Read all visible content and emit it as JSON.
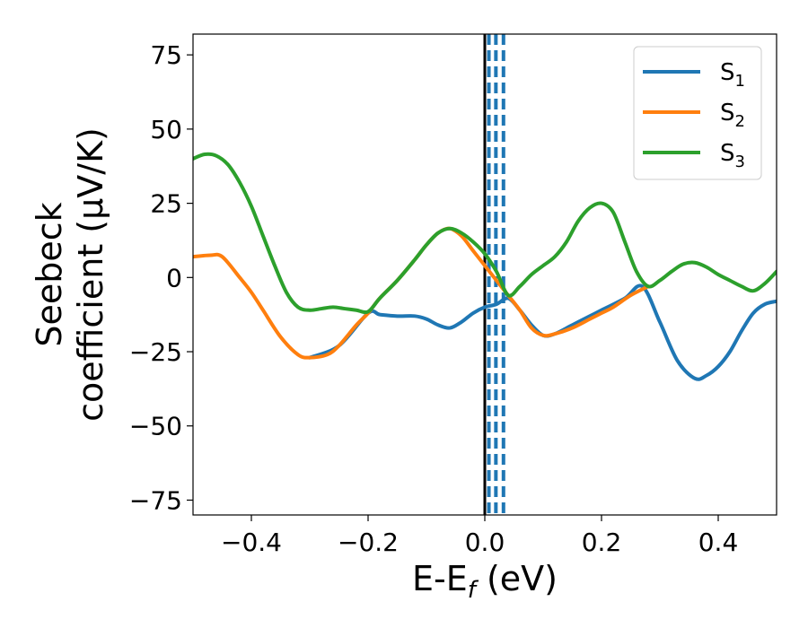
{
  "chart_data": {
    "type": "line",
    "xlabel": "E-E",
    "xlabel_sub": "f",
    "xlabel_unit": " (eV)",
    "ylabel_line1": "Seebeck",
    "ylabel_line2": "coefficient  (μV/K)",
    "xlim": [
      -0.5,
      0.5
    ],
    "ylim": [
      -80,
      82
    ],
    "xticks": [
      -0.4,
      -0.2,
      0.0,
      0.2,
      0.4
    ],
    "xtick_labels": [
      "−0.4",
      "−0.2",
      "0.0",
      "0.2",
      "0.4"
    ],
    "yticks": [
      75,
      50,
      25,
      0,
      -25,
      -50,
      -75
    ],
    "ytick_labels": [
      "75",
      "50",
      "25",
      "0",
      "−25",
      "−50",
      "−75"
    ],
    "grid": false,
    "legend_position": "top-right",
    "vertical_lines": [
      {
        "x": 0.0,
        "style": "solid",
        "color": "#000000"
      },
      {
        "x": 0.007,
        "style": "dashed",
        "color": "#1f77b4"
      },
      {
        "x": 0.019,
        "style": "dashed",
        "color": "#1f77b4"
      },
      {
        "x": 0.032,
        "style": "dashed",
        "color": "#1f77b4"
      }
    ],
    "series": [
      {
        "name": "S",
        "sub": "1",
        "color": "#1f77b4",
        "x": [
          -0.3,
          -0.25,
          -0.2,
          -0.18,
          -0.15,
          -0.12,
          -0.1,
          -0.08,
          -0.06,
          -0.04,
          -0.02,
          0.0,
          0.02,
          0.04,
          0.06,
          0.08,
          0.1,
          0.12,
          0.15,
          0.18,
          0.2,
          0.24,
          0.27,
          0.3,
          0.33,
          0.36,
          0.38,
          0.4,
          0.42,
          0.44,
          0.46,
          0.48,
          0.5
        ],
        "y": [
          -27,
          -23,
          -12,
          -12.5,
          -13,
          -13,
          -14,
          -16,
          -17,
          -15,
          -12,
          -10,
          -9,
          -7,
          -11,
          -16,
          -19.5,
          -19,
          -16,
          -13,
          -11,
          -7,
          -3,
          -15,
          -28,
          -34,
          -33,
          -30,
          -25,
          -18,
          -12,
          -9,
          -8
        ]
      },
      {
        "name": "S",
        "sub": "2",
        "color": "#ff7f0e",
        "x": [
          -0.5,
          -0.47,
          -0.45,
          -0.42,
          -0.4,
          -0.38,
          -0.35,
          -0.32,
          -0.3,
          -0.27,
          -0.25,
          -0.22,
          -0.2,
          -0.18,
          -0.15,
          -0.12,
          -0.1,
          -0.08,
          -0.06,
          -0.04,
          -0.02,
          0.0,
          0.02,
          0.04,
          0.06,
          0.08,
          0.1,
          0.12,
          0.15,
          0.18,
          0.2,
          0.22,
          0.25,
          0.28
        ],
        "y": [
          7,
          7.5,
          7,
          0,
          -5,
          -11,
          -20,
          -26,
          -27,
          -26,
          -23,
          -16,
          -12,
          -7,
          -1,
          6,
          11,
          15,
          16.5,
          14,
          9,
          4,
          -1,
          -6,
          -11,
          -17,
          -19.5,
          -19,
          -17,
          -14,
          -12,
          -10,
          -6,
          -3
        ]
      },
      {
        "name": "S",
        "sub": "3",
        "color": "#2ca02c",
        "x": [
          -0.5,
          -0.48,
          -0.46,
          -0.44,
          -0.42,
          -0.4,
          -0.38,
          -0.36,
          -0.34,
          -0.32,
          -0.3,
          -0.28,
          -0.26,
          -0.24,
          -0.22,
          -0.2,
          -0.18,
          -0.15,
          -0.12,
          -0.1,
          -0.08,
          -0.06,
          -0.04,
          -0.02,
          0.0,
          0.02,
          0.04,
          0.06,
          0.08,
          0.1,
          0.12,
          0.14,
          0.16,
          0.18,
          0.2,
          0.22,
          0.24,
          0.26,
          0.28,
          0.3,
          0.32,
          0.34,
          0.36,
          0.38,
          0.4,
          0.42,
          0.44,
          0.46,
          0.48,
          0.5
        ],
        "y": [
          40,
          41.5,
          41,
          38,
          32,
          24,
          14,
          4,
          -5,
          -10,
          -11,
          -10.5,
          -10,
          -10.5,
          -11,
          -11.5,
          -7,
          -1,
          6,
          11,
          15,
          16.5,
          15,
          12,
          8,
          2,
          -6,
          -3,
          1,
          4,
          7,
          12,
          19,
          23.5,
          25,
          22,
          12,
          2,
          -3,
          -1,
          2,
          4.5,
          5,
          3.5,
          1,
          -1,
          -3,
          -4.5,
          -2,
          2
        ]
      }
    ]
  }
}
